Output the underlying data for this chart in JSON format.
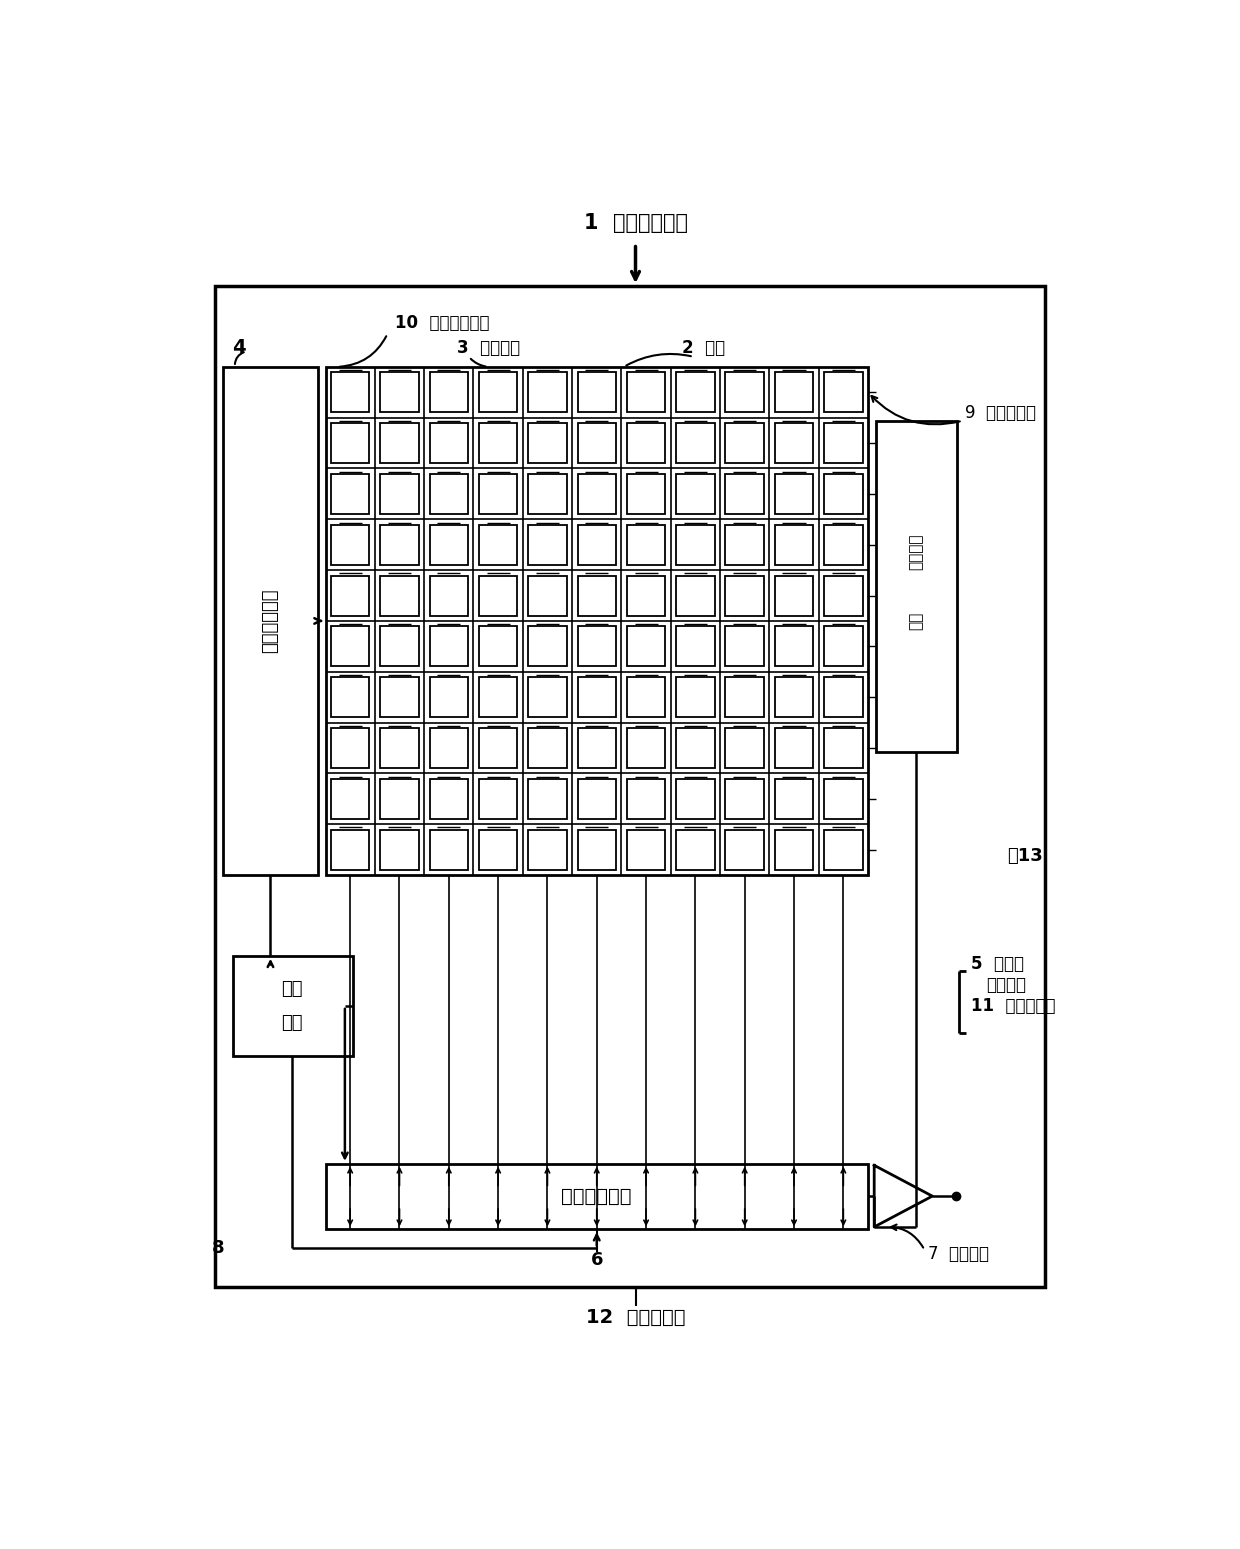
{
  "bg_color": "#ffffff",
  "title": "1  固态成像装置",
  "n_rows": 10,
  "n_cols": 11,
  "labels": {
    "4": "4",
    "10": "10  像素驱动配线",
    "3": "3  像素阵列",
    "2": "2  像素",
    "9": "9  垂直信号线",
    "13": "～13",
    "5a": "5  列信号",
    "5b": "处理电路",
    "11": "11  水平信号线",
    "6": "6",
    "7": "7  输出电路",
    "8": "8",
    "12": "12  半导体基板",
    "vd": "垂直驱动电路",
    "ctrl": "控制\n电路",
    "hd": "水平驱动电路",
    "cs": "列系出输\n入端"
  }
}
